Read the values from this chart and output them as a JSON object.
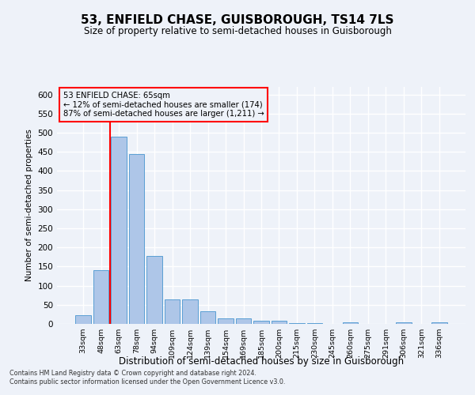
{
  "title1": "53, ENFIELD CHASE, GUISBOROUGH, TS14 7LS",
  "title2": "Size of property relative to semi-detached houses in Guisborough",
  "xlabel": "Distribution of semi-detached houses by size in Guisborough",
  "ylabel": "Number of semi-detached properties",
  "footnote1": "Contains HM Land Registry data © Crown copyright and database right 2024.",
  "footnote2": "Contains public sector information licensed under the Open Government Licence v3.0.",
  "categories": [
    "33sqm",
    "48sqm",
    "63sqm",
    "78sqm",
    "94sqm",
    "109sqm",
    "124sqm",
    "139sqm",
    "154sqm",
    "169sqm",
    "185sqm",
    "200sqm",
    "215sqm",
    "230sqm",
    "245sqm",
    "260sqm",
    "275sqm",
    "291sqm",
    "306sqm",
    "321sqm",
    "336sqm"
  ],
  "values": [
    23,
    140,
    490,
    445,
    178,
    65,
    65,
    33,
    15,
    15,
    8,
    8,
    2,
    2,
    0,
    5,
    0,
    0,
    5,
    0,
    5
  ],
  "bar_color": "#aec6e8",
  "bar_edge_color": "#5a9fd4",
  "vline_color": "red",
  "vline_x_index": 2,
  "annotation_title": "53 ENFIELD CHASE: 65sqm",
  "annotation_line1": "← 12% of semi-detached houses are smaller (174)",
  "annotation_line2": "87% of semi-detached houses are larger (1,211) →",
  "annotation_box_color": "red",
  "ylim": [
    0,
    620
  ],
  "yticks": [
    0,
    50,
    100,
    150,
    200,
    250,
    300,
    350,
    400,
    450,
    500,
    550,
    600
  ],
  "background_color": "#eef2f9",
  "grid_color": "#ffffff"
}
